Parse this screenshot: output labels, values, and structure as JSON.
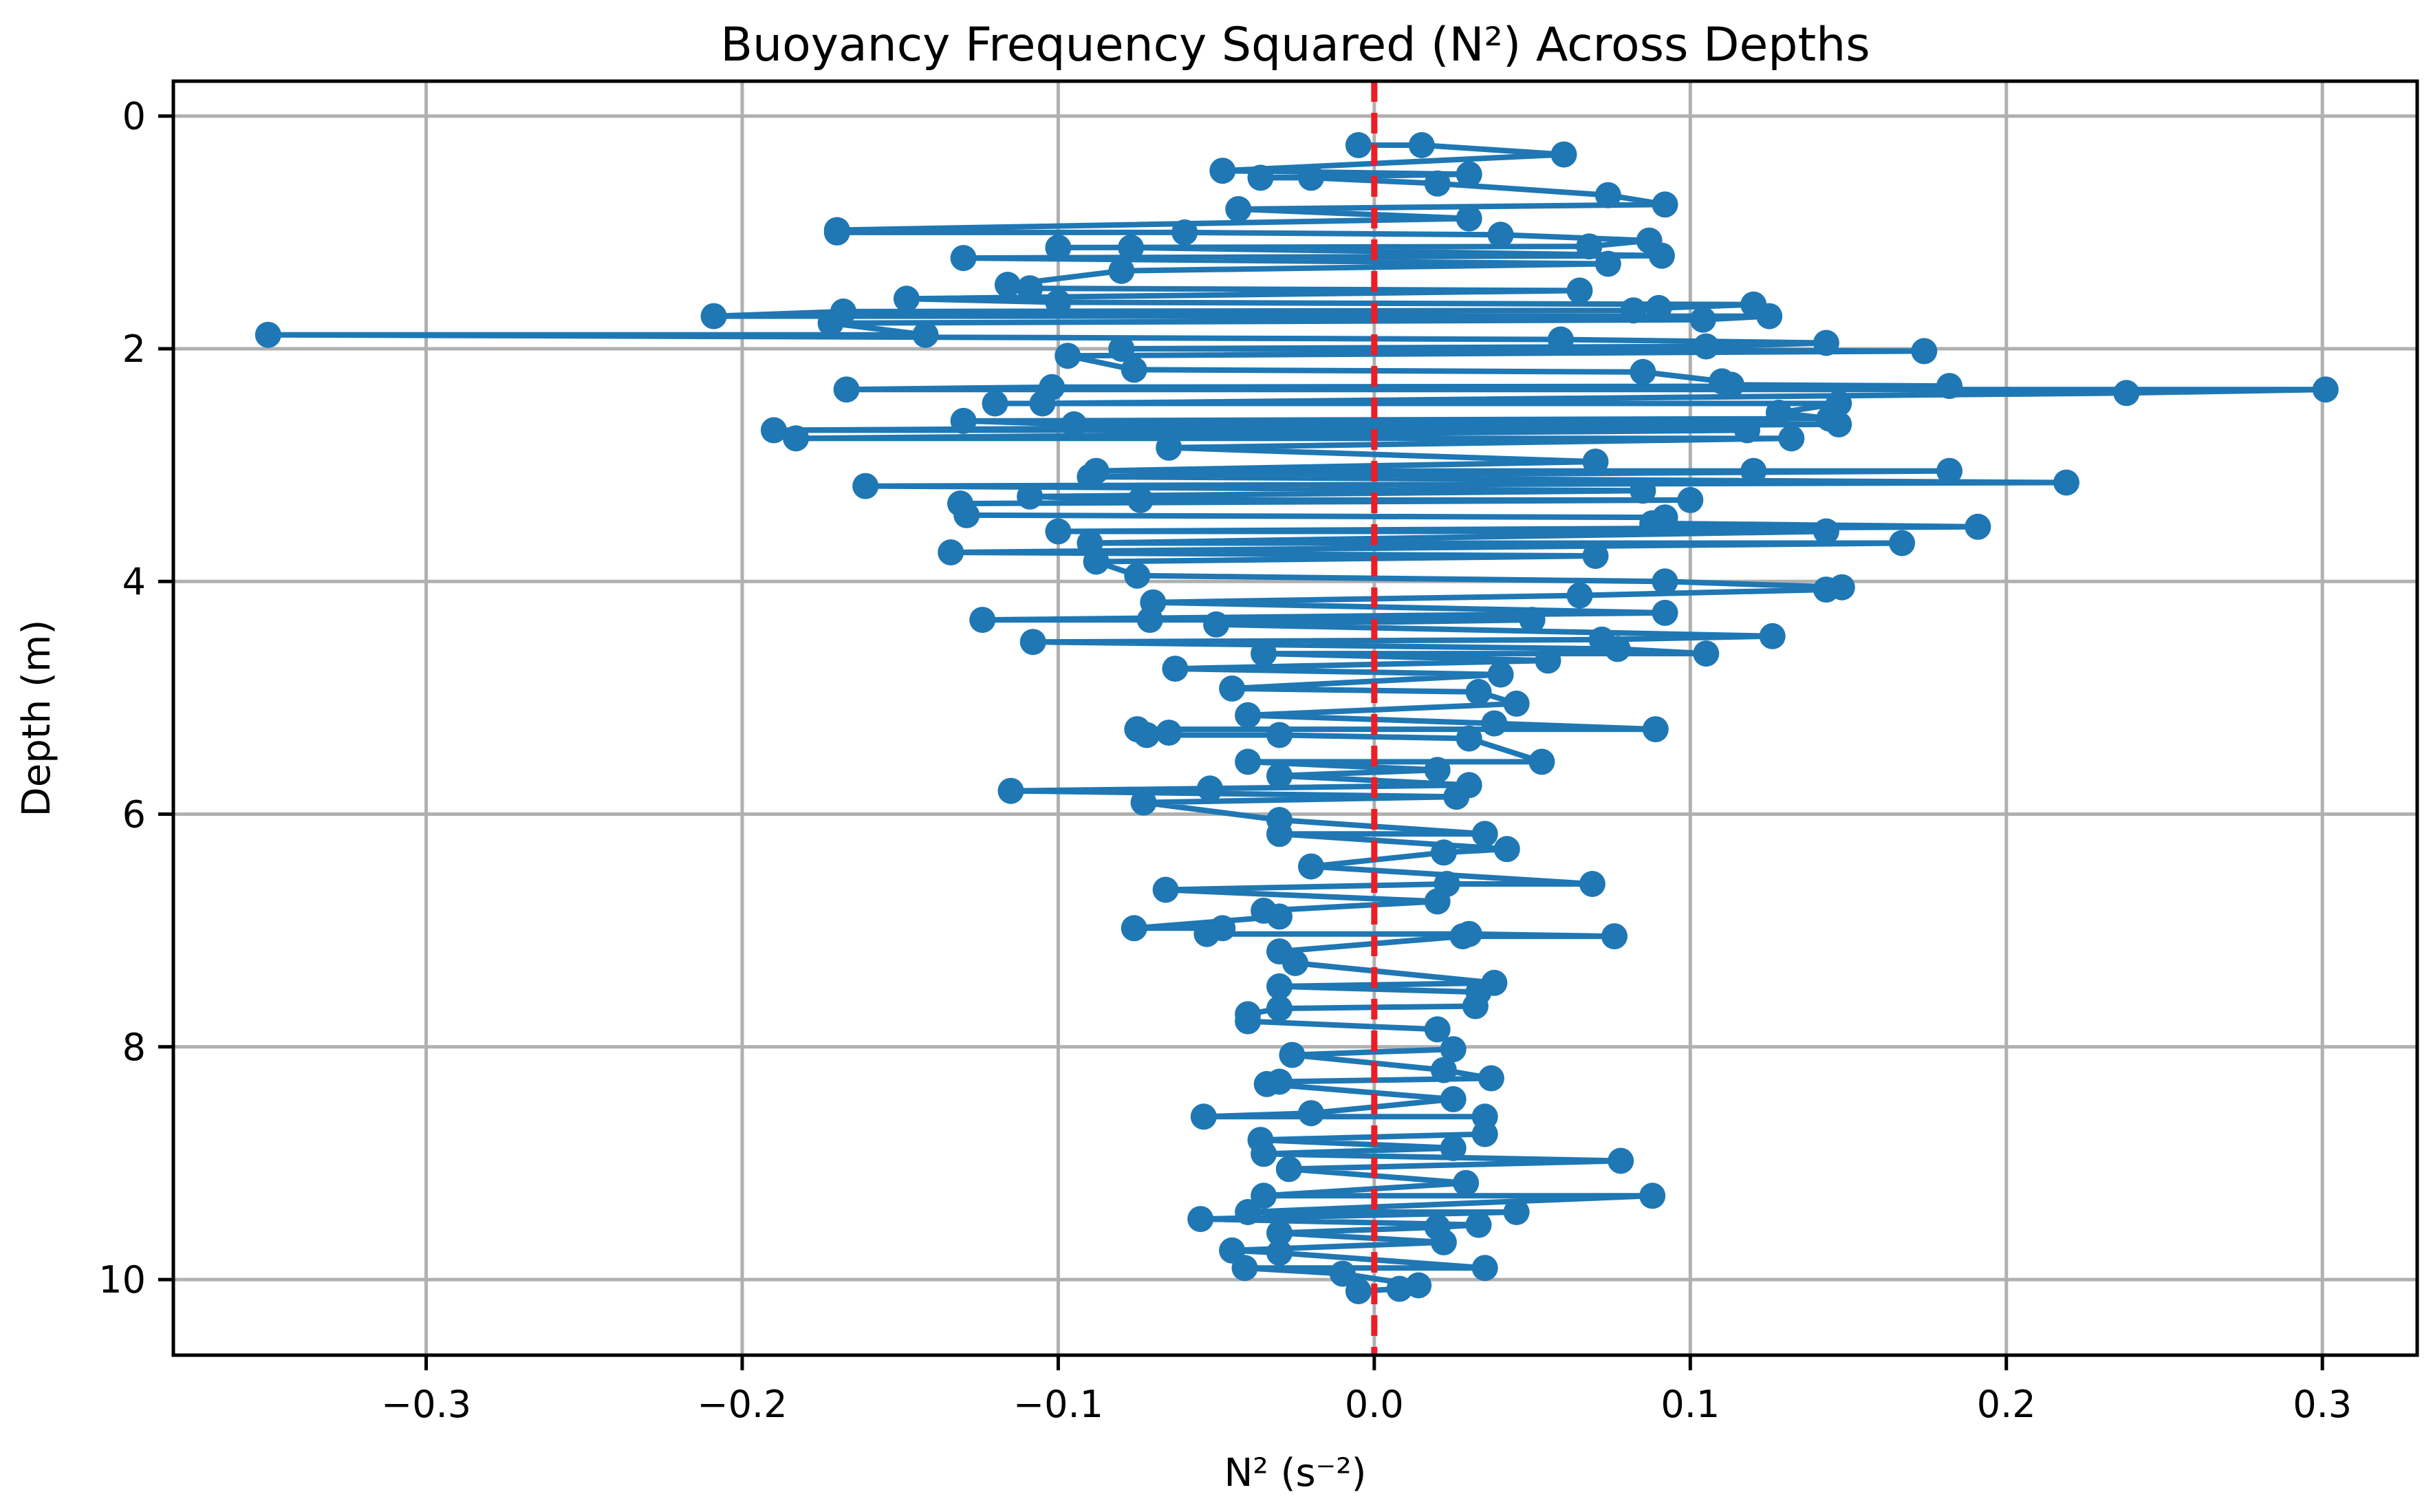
{
  "chart_data": {
    "type": "line",
    "title": "Buoyancy Frequency Squared (N²) Across Depths",
    "xlabel": "N² (s⁻²)",
    "ylabel": "Depth (m)",
    "xlim": [
      -0.38,
      0.33
    ],
    "ylim": [
      10.65,
      -0.3
    ],
    "y_inverted": true,
    "grid": true,
    "x_ticks": [
      -0.3,
      -0.2,
      -0.1,
      0.0,
      0.1,
      0.2,
      0.3
    ],
    "x_tick_labels": [
      "−0.3",
      "−0.2",
      "−0.1",
      "0.0",
      "0.1",
      "0.2",
      "0.3"
    ],
    "y_ticks": [
      0,
      2,
      4,
      6,
      8,
      10
    ],
    "y_tick_labels": [
      "0",
      "2",
      "4",
      "6",
      "8",
      "10"
    ],
    "reference_line": {
      "x": 0.0,
      "color": "#ee1c25",
      "style": "dashed"
    },
    "series": [
      {
        "color": "#1f77b4",
        "marker": "circle",
        "points": [
          {
            "x": -0.005,
            "y": 0.25
          },
          {
            "x": 0.015,
            "y": 0.25
          },
          {
            "x": 0.06,
            "y": 0.33
          },
          {
            "x": -0.048,
            "y": 0.47
          },
          {
            "x": 0.03,
            "y": 0.5
          },
          {
            "x": -0.036,
            "y": 0.53
          },
          {
            "x": -0.02,
            "y": 0.53
          },
          {
            "x": 0.02,
            "y": 0.58
          },
          {
            "x": 0.074,
            "y": 0.68
          },
          {
            "x": 0.092,
            "y": 0.76
          },
          {
            "x": -0.043,
            "y": 0.8
          },
          {
            "x": 0.03,
            "y": 0.88
          },
          {
            "x": -0.17,
            "y": 0.98
          },
          {
            "x": -0.17,
            "y": 1.0
          },
          {
            "x": -0.06,
            "y": 1.0
          },
          {
            "x": 0.04,
            "y": 1.02
          },
          {
            "x": 0.087,
            "y": 1.07
          },
          {
            "x": -0.1,
            "y": 1.13
          },
          {
            "x": -0.077,
            "y": 1.13
          },
          {
            "x": 0.068,
            "y": 1.12
          },
          {
            "x": -0.13,
            "y": 1.22
          },
          {
            "x": 0.091,
            "y": 1.2
          },
          {
            "x": 0.074,
            "y": 1.27
          },
          {
            "x": -0.08,
            "y": 1.33
          },
          {
            "x": -0.116,
            "y": 1.45
          },
          {
            "x": -0.109,
            "y": 1.48
          },
          {
            "x": -0.148,
            "y": 1.57
          },
          {
            "x": 0.065,
            "y": 1.5
          },
          {
            "x": -0.1,
            "y": 1.6
          },
          {
            "x": 0.12,
            "y": 1.62
          },
          {
            "x": 0.09,
            "y": 1.65
          },
          {
            "x": 0.082,
            "y": 1.67
          },
          {
            "x": -0.168,
            "y": 1.68
          },
          {
            "x": -0.209,
            "y": 1.72
          },
          {
            "x": 0.125,
            "y": 1.72
          },
          {
            "x": 0.104,
            "y": 1.75
          },
          {
            "x": -0.172,
            "y": 1.78
          },
          {
            "x": -0.142,
            "y": 1.88
          },
          {
            "x": -0.35,
            "y": 1.88
          },
          {
            "x": 0.059,
            "y": 1.92
          },
          {
            "x": 0.143,
            "y": 1.95
          },
          {
            "x": 0.105,
            "y": 1.98
          },
          {
            "x": -0.08,
            "y": 2.0
          },
          {
            "x": 0.174,
            "y": 2.02
          },
          {
            "x": -0.097,
            "y": 2.06
          },
          {
            "x": -0.076,
            "y": 2.18
          },
          {
            "x": 0.085,
            "y": 2.2
          },
          {
            "x": 0.11,
            "y": 2.28
          },
          {
            "x": 0.113,
            "y": 2.31
          },
          {
            "x": -0.167,
            "y": 2.35
          },
          {
            "x": -0.102,
            "y": 2.33
          },
          {
            "x": 0.182,
            "y": 2.32
          },
          {
            "x": 0.238,
            "y": 2.38
          },
          {
            "x": 0.301,
            "y": 2.35
          },
          {
            "x": -0.105,
            "y": 2.47
          },
          {
            "x": -0.12,
            "y": 2.47
          },
          {
            "x": 0.147,
            "y": 2.47
          },
          {
            "x": 0.128,
            "y": 2.55
          },
          {
            "x": 0.144,
            "y": 2.6
          },
          {
            "x": -0.13,
            "y": 2.62
          },
          {
            "x": -0.095,
            "y": 2.65
          },
          {
            "x": 0.147,
            "y": 2.65
          },
          {
            "x": -0.19,
            "y": 2.7
          },
          {
            "x": 0.118,
            "y": 2.7
          },
          {
            "x": -0.183,
            "y": 2.77
          },
          {
            "x": 0.132,
            "y": 2.77
          },
          {
            "x": -0.065,
            "y": 2.85
          },
          {
            "x": 0.07,
            "y": 2.97
          },
          {
            "x": -0.088,
            "y": 3.05
          },
          {
            "x": 0.12,
            "y": 3.05
          },
          {
            "x": 0.182,
            "y": 3.05
          },
          {
            "x": -0.09,
            "y": 3.1
          },
          {
            "x": -0.161,
            "y": 3.18
          },
          {
            "x": 0.219,
            "y": 3.15
          },
          {
            "x": 0.085,
            "y": 3.22
          },
          {
            "x": -0.109,
            "y": 3.27
          },
          {
            "x": -0.074,
            "y": 3.3
          },
          {
            "x": -0.131,
            "y": 3.33
          },
          {
            "x": 0.1,
            "y": 3.3
          },
          {
            "x": -0.129,
            "y": 3.43
          },
          {
            "x": 0.092,
            "y": 3.45
          },
          {
            "x": 0.088,
            "y": 3.5
          },
          {
            "x": -0.1,
            "y": 3.57
          },
          {
            "x": 0.143,
            "y": 3.57
          },
          {
            "x": 0.191,
            "y": 3.53
          },
          {
            "x": -0.09,
            "y": 3.67
          },
          {
            "x": 0.167,
            "y": 3.67
          },
          {
            "x": -0.134,
            "y": 3.75
          },
          {
            "x": 0.07,
            "y": 3.78
          },
          {
            "x": -0.088,
            "y": 3.83
          },
          {
            "x": -0.075,
            "y": 3.95
          },
          {
            "x": 0.092,
            "y": 4.0
          },
          {
            "x": 0.143,
            "y": 4.07
          },
          {
            "x": 0.148,
            "y": 4.05
          },
          {
            "x": 0.065,
            "y": 4.12
          },
          {
            "x": -0.07,
            "y": 4.18
          },
          {
            "x": 0.092,
            "y": 4.27
          },
          {
            "x": -0.124,
            "y": 4.33
          },
          {
            "x": -0.071,
            "y": 4.33
          },
          {
            "x": 0.05,
            "y": 4.33
          },
          {
            "x": -0.05,
            "y": 4.37
          },
          {
            "x": 0.126,
            "y": 4.47
          },
          {
            "x": -0.108,
            "y": 4.52
          },
          {
            "x": 0.072,
            "y": 4.5
          },
          {
            "x": 0.077,
            "y": 4.58
          },
          {
            "x": 0.105,
            "y": 4.62
          },
          {
            "x": -0.035,
            "y": 4.62
          },
          {
            "x": 0.055,
            "y": 4.68
          },
          {
            "x": -0.063,
            "y": 4.75
          },
          {
            "x": 0.04,
            "y": 4.8
          },
          {
            "x": -0.045,
            "y": 4.92
          },
          {
            "x": 0.033,
            "y": 4.95
          },
          {
            "x": 0.045,
            "y": 5.05
          },
          {
            "x": -0.04,
            "y": 5.15
          },
          {
            "x": 0.038,
            "y": 5.22
          },
          {
            "x": 0.089,
            "y": 5.27
          },
          {
            "x": -0.075,
            "y": 5.27
          },
          {
            "x": -0.072,
            "y": 5.32
          },
          {
            "x": -0.065,
            "y": 5.3
          },
          {
            "x": -0.03,
            "y": 5.32
          },
          {
            "x": 0.03,
            "y": 5.35
          },
          {
            "x": 0.053,
            "y": 5.55
          },
          {
            "x": -0.04,
            "y": 5.55
          },
          {
            "x": 0.02,
            "y": 5.62
          },
          {
            "x": -0.03,
            "y": 5.67
          },
          {
            "x": 0.03,
            "y": 5.75
          },
          {
            "x": -0.115,
            "y": 5.8
          },
          {
            "x": -0.052,
            "y": 5.78
          },
          {
            "x": 0.026,
            "y": 5.85
          },
          {
            "x": -0.073,
            "y": 5.9
          },
          {
            "x": -0.03,
            "y": 6.05
          },
          {
            "x": 0.035,
            "y": 6.17
          },
          {
            "x": -0.03,
            "y": 6.17
          },
          {
            "x": 0.042,
            "y": 6.3
          },
          {
            "x": 0.022,
            "y": 6.33
          },
          {
            "x": -0.02,
            "y": 6.45
          },
          {
            "x": 0.069,
            "y": 6.6
          },
          {
            "x": 0.023,
            "y": 6.6
          },
          {
            "x": -0.066,
            "y": 6.65
          },
          {
            "x": 0.02,
            "y": 6.75
          },
          {
            "x": -0.035,
            "y": 6.83
          },
          {
            "x": -0.03,
            "y": 6.88
          },
          {
            "x": 0.076,
            "y": 7.05
          },
          {
            "x": -0.076,
            "y": 6.98
          },
          {
            "x": -0.053,
            "y": 7.03
          },
          {
            "x": -0.048,
            "y": 6.98
          },
          {
            "x": 0.028,
            "y": 7.05
          },
          {
            "x": 0.03,
            "y": 7.03
          },
          {
            "x": -0.03,
            "y": 7.18
          },
          {
            "x": -0.025,
            "y": 7.28
          },
          {
            "x": 0.038,
            "y": 7.45
          },
          {
            "x": 0.033,
            "y": 7.53
          },
          {
            "x": -0.03,
            "y": 7.48
          },
          {
            "x": -0.04,
            "y": 7.72
          },
          {
            "x": 0.032,
            "y": 7.65
          },
          {
            "x": -0.04,
            "y": 7.78
          },
          {
            "x": -0.03,
            "y": 7.67
          },
          {
            "x": 0.02,
            "y": 7.85
          },
          {
            "x": 0.025,
            "y": 8.02
          },
          {
            "x": -0.026,
            "y": 8.07
          },
          {
            "x": 0.037,
            "y": 8.27
          },
          {
            "x": 0.022,
            "y": 8.2
          },
          {
            "x": -0.034,
            "y": 8.32
          },
          {
            "x": -0.03,
            "y": 8.3
          },
          {
            "x": 0.025,
            "y": 8.45
          },
          {
            "x": -0.054,
            "y": 8.6
          },
          {
            "x": 0.035,
            "y": 8.6
          },
          {
            "x": -0.02,
            "y": 8.57
          },
          {
            "x": 0.035,
            "y": 8.75
          },
          {
            "x": -0.036,
            "y": 8.8
          },
          {
            "x": 0.025,
            "y": 8.87
          },
          {
            "x": -0.035,
            "y": 8.92
          },
          {
            "x": 0.078,
            "y": 8.98
          },
          {
            "x": -0.027,
            "y": 9.05
          },
          {
            "x": 0.029,
            "y": 9.17
          },
          {
            "x": -0.035,
            "y": 9.28
          },
          {
            "x": 0.088,
            "y": 9.28
          },
          {
            "x": -0.04,
            "y": 9.42
          },
          {
            "x": 0.045,
            "y": 9.42
          },
          {
            "x": -0.055,
            "y": 9.48
          },
          {
            "x": 0.033,
            "y": 9.53
          },
          {
            "x": 0.02,
            "y": 9.55
          },
          {
            "x": -0.03,
            "y": 9.6
          },
          {
            "x": 0.022,
            "y": 9.68
          },
          {
            "x": -0.045,
            "y": 9.75
          },
          {
            "x": -0.03,
            "y": 9.77
          },
          {
            "x": 0.035,
            "y": 9.9
          },
          {
            "x": -0.041,
            "y": 9.9
          },
          {
            "x": -0.01,
            "y": 9.95
          },
          {
            "x": 0.014,
            "y": 10.05
          },
          {
            "x": -0.005,
            "y": 10.1
          },
          {
            "x": 0.008,
            "y": 10.08
          }
        ]
      }
    ]
  }
}
